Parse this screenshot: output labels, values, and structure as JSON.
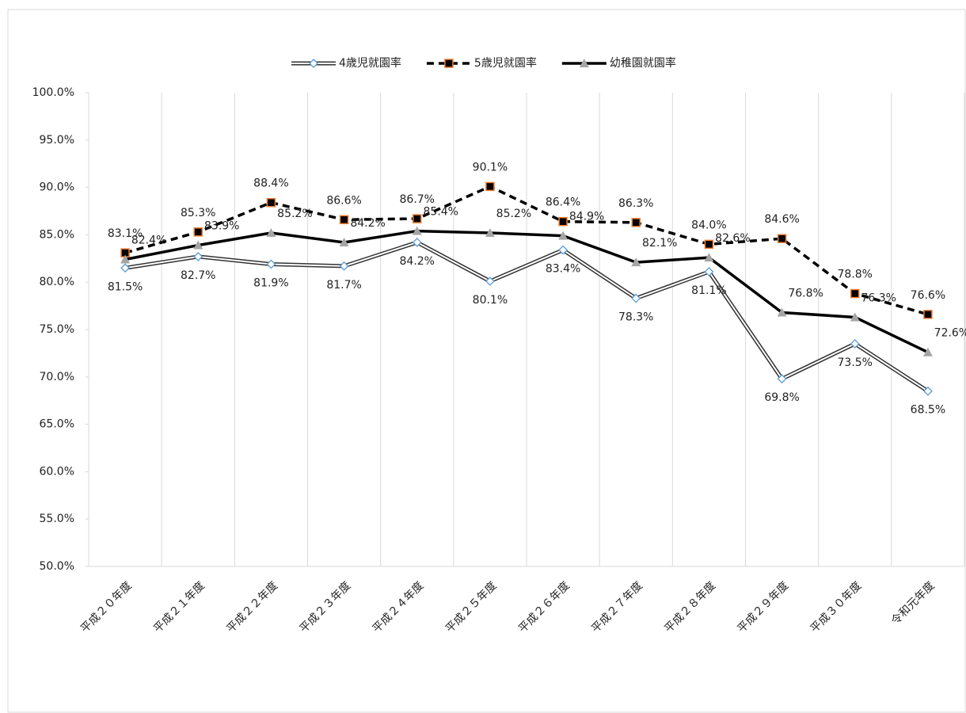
{
  "chart_data": {
    "type": "line",
    "categories": [
      "平成２０年度",
      "平成２１年度",
      "平成２２年度",
      "平成２３年度",
      "平成２４年度",
      "平成２５年度",
      "平成２６年度",
      "平成２７年度",
      "平成２８年度",
      "平成２９年度",
      "平成３０年度",
      "令和元年度"
    ],
    "series": [
      {
        "name": "4歳児就園率",
        "color": "#5b9bd5",
        "values": [
          81.5,
          82.7,
          81.9,
          81.7,
          84.2,
          80.1,
          83.4,
          78.3,
          81.1,
          69.8,
          73.5,
          68.5
        ],
        "value_labels": [
          "81.5%",
          "82.7%",
          "81.9%",
          "81.7%",
          "84.2%",
          "80.1%",
          "83.4%",
          "78.3%",
          "81.1%",
          "69.8%",
          "73.5%",
          "68.5%"
        ]
      },
      {
        "name": "5歳児就園率",
        "color": "#ed7d31",
        "values": [
          83.1,
          85.3,
          88.4,
          86.6,
          86.7,
          90.1,
          86.4,
          86.3,
          84.0,
          84.6,
          78.8,
          76.6
        ],
        "value_labels": [
          "83.1%",
          "85.3%",
          "88.4%",
          "86.6%",
          "86.7%",
          "90.1%",
          "86.4%",
          "86.3%",
          "84.0%",
          "84.6%",
          "78.8%",
          "76.6%"
        ]
      },
      {
        "name": "幼稚園就園率",
        "color": "#a5a5a5",
        "values": [
          82.4,
          83.9,
          85.2,
          84.2,
          85.4,
          85.2,
          84.9,
          82.1,
          82.6,
          76.8,
          76.3,
          72.6
        ],
        "value_labels": [
          "82.4%",
          "83.9%",
          "85.2%",
          "84.2%",
          "85.4%",
          "85.2%",
          "84.9%",
          "82.1%",
          "82.6%",
          "76.8%",
          "76.3%",
          "72.6%"
        ]
      }
    ],
    "ylim": [
      50,
      100
    ],
    "yticks": [
      {
        "value": 50,
        "label": "50.0%"
      },
      {
        "value": 55,
        "label": "55.0%"
      },
      {
        "value": 60,
        "label": "60.0%"
      },
      {
        "value": 65,
        "label": "65.0%"
      },
      {
        "value": 70,
        "label": "70.0%"
      },
      {
        "value": 75,
        "label": "75.0%"
      },
      {
        "value": 80,
        "label": "80.0%"
      },
      {
        "value": 85,
        "label": "85.0%"
      },
      {
        "value": 90,
        "label": "90.0%"
      },
      {
        "value": 95,
        "label": "95.0%"
      },
      {
        "value": 100,
        "label": "100.0%"
      }
    ],
    "legend": "top"
  }
}
